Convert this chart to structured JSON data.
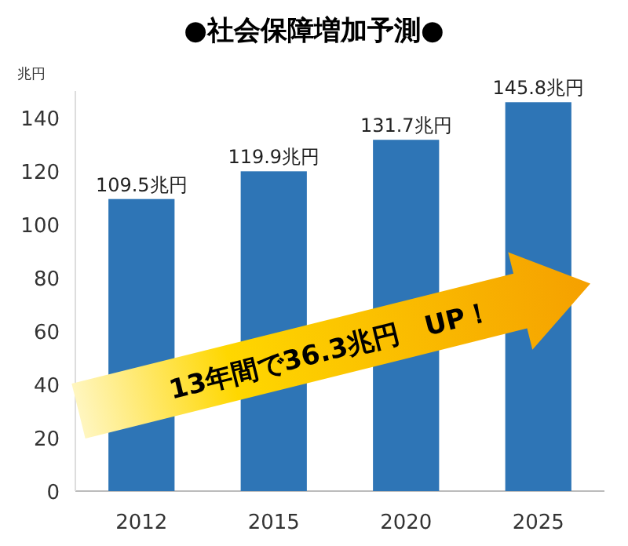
{
  "chart_data": {
    "type": "bar",
    "title": "●社会保障増加予測●",
    "ylabel": "兆円",
    "categories": [
      "2012",
      "2015",
      "2020",
      "2025"
    ],
    "values": [
      109.5,
      119.9,
      131.7,
      145.8
    ],
    "color": "#2e75b6",
    "value_labels": [
      "109.5兆円",
      "119.9兆円",
      "131.7兆円",
      "145.8兆円"
    ],
    "ylim": [
      0,
      150
    ],
    "yticks": [
      0,
      20,
      40,
      60,
      80,
      100,
      120,
      140
    ],
    "annotations": [
      "13年間で36.3兆円　UP！"
    ]
  }
}
